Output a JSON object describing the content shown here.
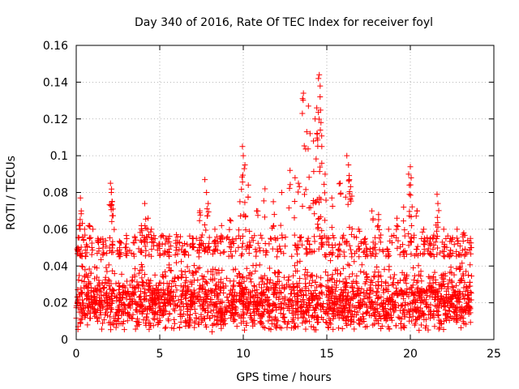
{
  "chart_data": {
    "type": "scatter",
    "title": "Day 340 of 2016, Rate Of TEC Index for receiver foyl",
    "xlabel": "GPS time / hours",
    "ylabel": "ROTI / TECUs",
    "xlim": [
      0,
      25
    ],
    "ylim": [
      0,
      0.16
    ],
    "x_ticks": [
      "0",
      "5",
      "10",
      "15",
      "20",
      "25"
    ],
    "y_ticks": [
      "0",
      "0.02",
      "0.04",
      "0.06",
      "0.08",
      "0.1",
      "0.12",
      "0.14",
      "0.16"
    ],
    "grid": true,
    "marker": "+",
    "color": "#ff0000",
    "series": [
      {
        "name": "ROTI",
        "x_start": 0.0,
        "x_end": 23.7,
        "baseline_range": [
          0.004,
          0.045
        ],
        "x": [
          0.1,
          0.25,
          0.3,
          0.5,
          0.8,
          1.0,
          1.3,
          1.6,
          2.05,
          2.1,
          2.15,
          2.2,
          2.6,
          3.0,
          3.5,
          3.9,
          4.1,
          4.3,
          4.5,
          5.0,
          5.5,
          6.0,
          6.5,
          7.0,
          7.4,
          7.7,
          7.8,
          7.9,
          8.3,
          8.7,
          9.2,
          9.8,
          9.95,
          10.0,
          10.1,
          10.3,
          10.8,
          11.3,
          11.8,
          12.3,
          12.8,
          13.1,
          13.3,
          13.6,
          13.8,
          13.9,
          14.0,
          14.2,
          14.3,
          14.4,
          14.5,
          14.55,
          14.6,
          14.65,
          14.7,
          14.9,
          15.3,
          15.8,
          16.2,
          16.3,
          16.35,
          16.5,
          16.9,
          17.3,
          17.7,
          18.1,
          18.7,
          19.2,
          19.6,
          19.9,
          20.0,
          20.05,
          20.4,
          20.8,
          21.2,
          21.6,
          21.65,
          22.0,
          22.4,
          22.8,
          23.2,
          23.6
        ],
        "y": [
          0.05,
          0.077,
          0.07,
          0.06,
          0.062,
          0.06,
          0.055,
          0.053,
          0.085,
          0.08,
          0.075,
          0.071,
          0.05,
          0.052,
          0.056,
          0.062,
          0.074,
          0.066,
          0.06,
          0.052,
          0.055,
          0.057,
          0.048,
          0.055,
          0.07,
          0.087,
          0.08,
          0.074,
          0.06,
          0.062,
          0.065,
          0.075,
          0.105,
          0.1,
          0.095,
          0.084,
          0.07,
          0.082,
          0.075,
          0.08,
          0.092,
          0.088,
          0.085,
          0.134,
          0.113,
          0.127,
          0.112,
          0.108,
          0.12,
          0.126,
          0.142,
          0.144,
          0.132,
          0.118,
          0.105,
          0.09,
          0.077,
          0.085,
          0.1,
          0.095,
          0.087,
          0.078,
          0.06,
          0.055,
          0.07,
          0.068,
          0.06,
          0.066,
          0.072,
          0.09,
          0.094,
          0.088,
          0.07,
          0.06,
          0.055,
          0.079,
          0.074,
          0.06,
          0.055,
          0.06,
          0.058,
          0.055
        ]
      }
    ]
  }
}
